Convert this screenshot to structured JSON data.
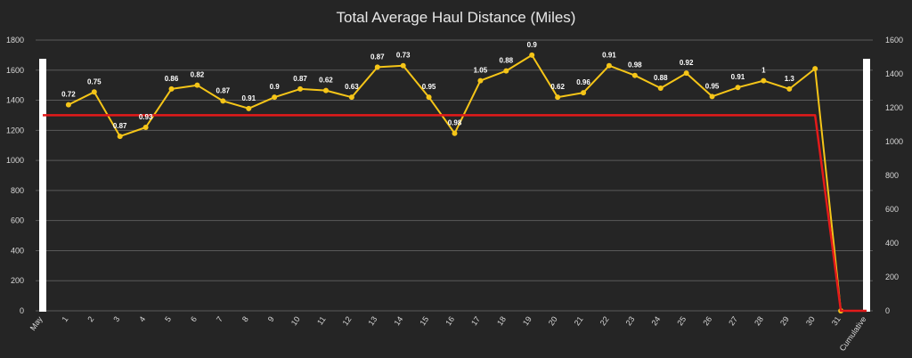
{
  "chart_data": {
    "type": "line",
    "title": "Total Average Haul Distance (Miles)",
    "categories": [
      "May",
      "1",
      "2",
      "3",
      "4",
      "5",
      "6",
      "7",
      "8",
      "9",
      "10",
      "11",
      "12",
      "13",
      "14",
      "15",
      "16",
      "17",
      "18",
      "19",
      "20",
      "21",
      "22",
      "23",
      "24",
      "25",
      "26",
      "27",
      "28",
      "29",
      "30",
      "31",
      "Cumulative"
    ],
    "y_left": {
      "ticks": [
        0,
        200,
        400,
        600,
        800,
        1000,
        1200,
        1400,
        1600,
        1800
      ],
      "ylim": [
        0,
        1800
      ]
    },
    "y_right": {
      "ticks": [
        0,
        200,
        400,
        600,
        800,
        1000,
        1200,
        1400,
        1600
      ],
      "ylim": [
        0,
        1600
      ]
    },
    "grid": true,
    "series": [
      {
        "color": "#f5c518",
        "axis": "left",
        "values": [
          null,
          1370,
          1455,
          1160,
          1220,
          1475,
          1500,
          1395,
          1345,
          1420,
          1475,
          1465,
          1420,
          1620,
          1630,
          1420,
          1180,
          1530,
          1595,
          1700,
          1420,
          1450,
          1630,
          1565,
          1480,
          1580,
          1425,
          1485,
          1530,
          1475,
          1610,
          0,
          null
        ],
        "labels": [
          null,
          "0.72",
          "0.75",
          "0.87",
          "0.93",
          "0.86",
          "0.82",
          "0.87",
          "0.91",
          "0.9",
          "0.87",
          "0.62",
          "0.63",
          "0.87",
          "0.73",
          "0.95",
          "0.98",
          "1.05",
          "0.88",
          "0.9",
          "0.62",
          "0.96",
          "0.91",
          "0.98",
          "0.88",
          "0.92",
          "0.95",
          "0.91",
          "1",
          "1.3",
          null,
          null,
          null
        ]
      },
      {
        "color": "#e31a1a",
        "axis": "left",
        "values": [
          1300,
          1300,
          1300,
          1300,
          1300,
          1300,
          1300,
          1300,
          1300,
          1300,
          1300,
          1300,
          1300,
          1300,
          1300,
          1300,
          1300,
          1300,
          1300,
          1300,
          1300,
          1300,
          1300,
          1300,
          1300,
          1300,
          1300,
          1300,
          1300,
          1300,
          1300,
          0,
          0
        ]
      }
    ]
  }
}
